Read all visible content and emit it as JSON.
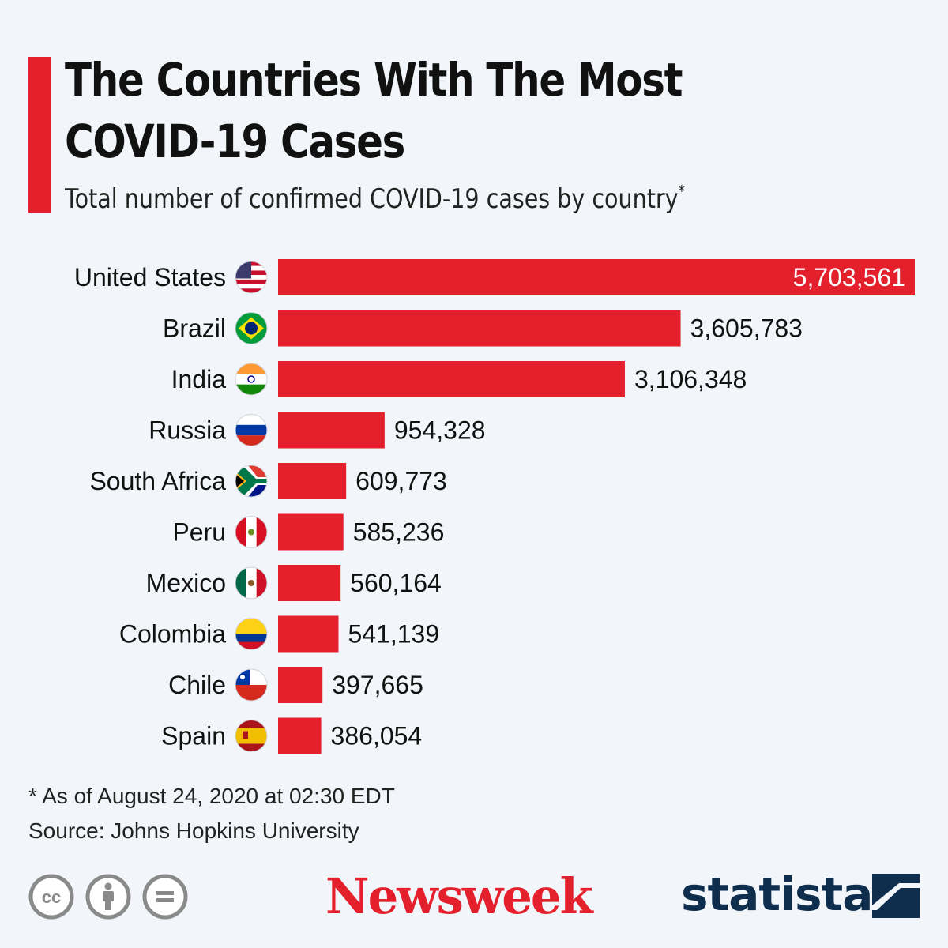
{
  "header": {
    "title_line1": "The Countries With The Most",
    "title_line2": "COVID-19 Cases",
    "subtitle": "Total number of confirmed COVID-19 cases by country",
    "subtitle_mark": "*"
  },
  "colors": {
    "accent": "#e3202b",
    "bar": "#e3202b",
    "background": "#f2f5f9",
    "statista": "#0f2e4d"
  },
  "chart_data": {
    "type": "bar",
    "orientation": "horizontal",
    "categories": [
      "United States",
      "Brazil",
      "India",
      "Russia",
      "South Africa",
      "Peru",
      "Mexico",
      "Colombia",
      "Chile",
      "Spain"
    ],
    "values": [
      5703561,
      3605783,
      3106348,
      954328,
      609773,
      585236,
      560164,
      541139,
      397665,
      386054
    ],
    "value_labels": [
      "5,703,561",
      "3,605,783",
      "3,106,348",
      "954,328",
      "609,773",
      "585,236",
      "560,164",
      "541,139",
      "397,665",
      "386,054"
    ],
    "flags": [
      "us-flag-icon",
      "brazil-flag-icon",
      "india-flag-icon",
      "russia-flag-icon",
      "south-africa-flag-icon",
      "peru-flag-icon",
      "mexico-flag-icon",
      "colombia-flag-icon",
      "chile-flag-icon",
      "spain-flag-icon"
    ],
    "title": "The Countries With The Most COVID-19 Cases",
    "xlabel": "",
    "ylabel": "",
    "xlim": [
      0,
      5703561
    ],
    "grid": false,
    "legend": "none"
  },
  "footer": {
    "footnote": "* As of August 24, 2020 at 02:30 EDT",
    "source": "Source: Johns Hopkins University",
    "newsweek": "Newsweek",
    "statista": "statista",
    "license_icons": [
      "cc-icon",
      "attribution-icon",
      "no-derivatives-icon"
    ]
  }
}
